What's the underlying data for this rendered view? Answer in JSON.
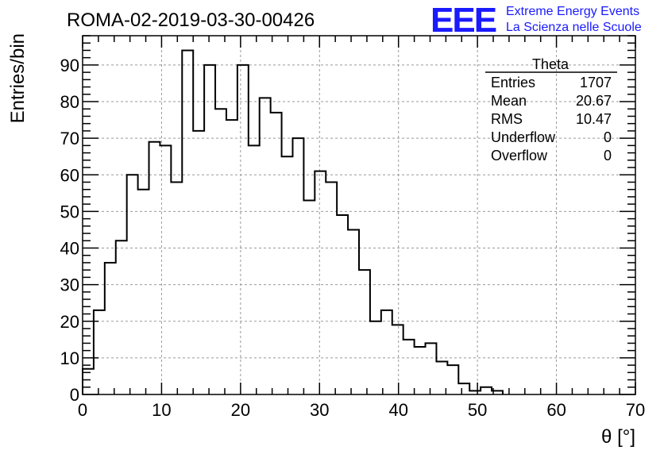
{
  "chart_data": {
    "type": "bar",
    "title": "ROMA-02-2019-03-30-00426",
    "xlabel": "θ [°]",
    "ylabel": "Entries/bin",
    "xlim": [
      0,
      70
    ],
    "ylim": [
      0,
      98
    ],
    "x_ticks": [
      0,
      10,
      20,
      30,
      40,
      50,
      60,
      70
    ],
    "y_ticks": [
      0,
      10,
      20,
      30,
      40,
      50,
      60,
      70,
      80,
      90
    ],
    "grid": true,
    "bin_edges": [
      0,
      1.4,
      2.8,
      4.2,
      5.6,
      7.0,
      8.4,
      9.8,
      11.2,
      12.6,
      14.0,
      15.4,
      16.8,
      18.2,
      19.6,
      21.0,
      22.4,
      23.8,
      25.2,
      26.6,
      28.0,
      29.4,
      30.8,
      32.2,
      33.6,
      35.0,
      36.4,
      37.8,
      39.2,
      40.6,
      42.0,
      43.4,
      44.8,
      46.2,
      47.6,
      49.0,
      50.4,
      51.8,
      53.2
    ],
    "values": [
      7,
      23,
      36,
      42,
      60,
      56,
      69,
      68,
      58,
      94,
      72,
      90,
      78,
      75,
      90,
      68,
      81,
      77,
      65,
      70,
      53,
      61,
      58,
      49,
      45,
      34,
      20,
      23,
      19,
      15,
      13,
      14,
      9,
      8,
      3,
      1,
      2,
      1
    ],
    "legend_position": "top-right"
  },
  "stats_box": {
    "name": "Theta",
    "rows": [
      {
        "label": "Entries",
        "value": "1707"
      },
      {
        "label": "Mean",
        "value": "20.67"
      },
      {
        "label": "RMS",
        "value": "10.47"
      },
      {
        "label": "Underflow",
        "value": "0"
      },
      {
        "label": "Overflow",
        "value": "0"
      }
    ]
  },
  "logo": {
    "mark": "EEE",
    "line1": "Extreme Energy Events",
    "line2": "La Scienza nelle Scuole",
    "color": "#1a1aff"
  }
}
